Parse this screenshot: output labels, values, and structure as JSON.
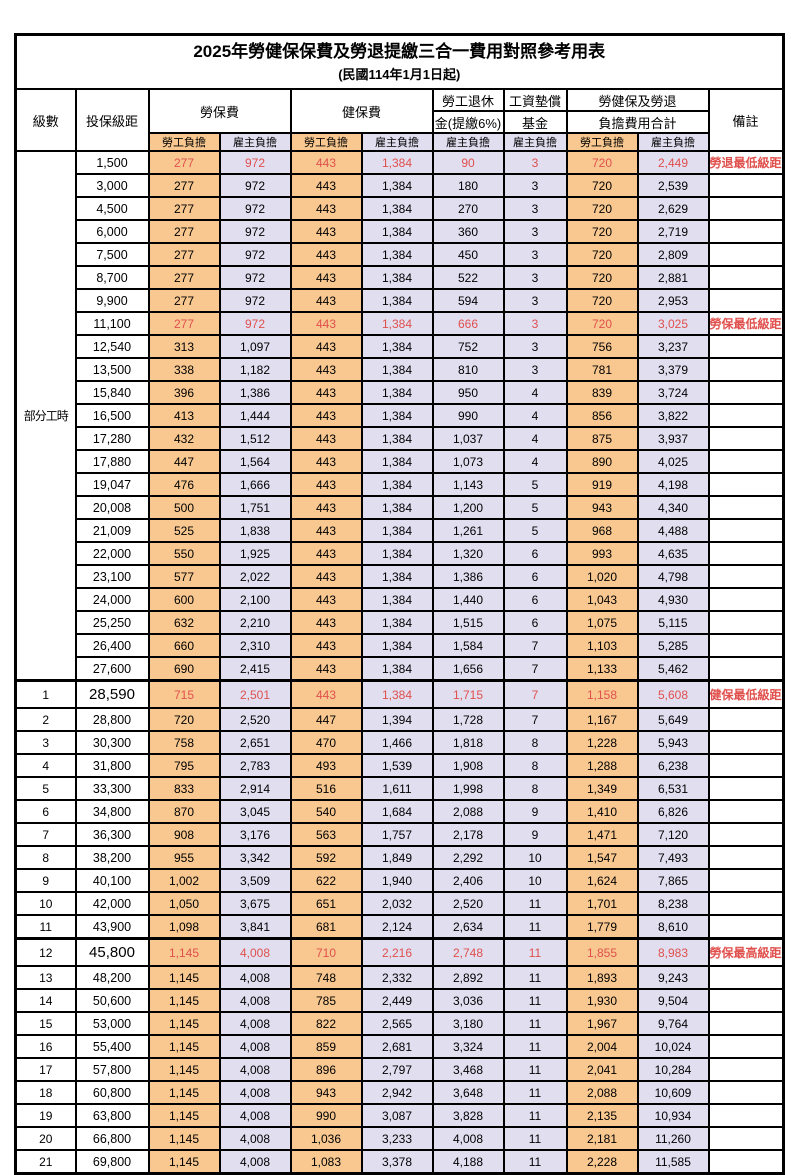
{
  "title": "2025年勞健保保費及勞退提繳三合一費用對照參考用表",
  "subtitle": "(民國114年1月1日起)",
  "colors": {
    "employee_bg": "#F8C890",
    "employer_bg": "#E1DEF0",
    "highlight_red": "#E0504D"
  },
  "header": {
    "level": "級數",
    "bracket": "投保級距",
    "labor_insurance": "勞保費",
    "health_insurance": "健保費",
    "pension_line1": "勞工退休",
    "pension_line2": "金(提繳6%)",
    "wage_fund_line1": "工資墊償",
    "wage_fund_line2": "基金",
    "total_line1": "勞健保及勞退",
    "total_line2": "負擔費用合計",
    "note": "備註",
    "employee_label": "勞工負擔",
    "employer_label": "雇主負擔"
  },
  "part_time_label": "部分工時",
  "part_time_rowspan": 23,
  "rows": [
    {
      "level": "",
      "bracket": "1,500",
      "values": [
        "277",
        "972",
        "443",
        "1,384",
        "90",
        "3",
        "720",
        "2,449"
      ],
      "note": "勞退最低級距",
      "red": true,
      "tall": false
    },
    {
      "level": "",
      "bracket": "3,000",
      "values": [
        "277",
        "972",
        "443",
        "1,384",
        "180",
        "3",
        "720",
        "2,539"
      ],
      "note": "",
      "red": false,
      "tall": false
    },
    {
      "level": "",
      "bracket": "4,500",
      "values": [
        "277",
        "972",
        "443",
        "1,384",
        "270",
        "3",
        "720",
        "2,629"
      ],
      "note": "",
      "red": false,
      "tall": false
    },
    {
      "level": "",
      "bracket": "6,000",
      "values": [
        "277",
        "972",
        "443",
        "1,384",
        "360",
        "3",
        "720",
        "2,719"
      ],
      "note": "",
      "red": false,
      "tall": false
    },
    {
      "level": "",
      "bracket": "7,500",
      "values": [
        "277",
        "972",
        "443",
        "1,384",
        "450",
        "3",
        "720",
        "2,809"
      ],
      "note": "",
      "red": false,
      "tall": false
    },
    {
      "level": "",
      "bracket": "8,700",
      "values": [
        "277",
        "972",
        "443",
        "1,384",
        "522",
        "3",
        "720",
        "2,881"
      ],
      "note": "",
      "red": false,
      "tall": false
    },
    {
      "level": "",
      "bracket": "9,900",
      "values": [
        "277",
        "972",
        "443",
        "1,384",
        "594",
        "3",
        "720",
        "2,953"
      ],
      "note": "",
      "red": false,
      "tall": false
    },
    {
      "level": "",
      "bracket": "11,100",
      "values": [
        "277",
        "972",
        "443",
        "1,384",
        "666",
        "3",
        "720",
        "3,025"
      ],
      "note": "勞保最低級距",
      "red": true,
      "tall": false
    },
    {
      "level": "",
      "bracket": "12,540",
      "values": [
        "313",
        "1,097",
        "443",
        "1,384",
        "752",
        "3",
        "756",
        "3,237"
      ],
      "note": "",
      "red": false,
      "tall": false
    },
    {
      "level": "",
      "bracket": "13,500",
      "values": [
        "338",
        "1,182",
        "443",
        "1,384",
        "810",
        "3",
        "781",
        "3,379"
      ],
      "note": "",
      "red": false,
      "tall": false
    },
    {
      "level": "",
      "bracket": "15,840",
      "values": [
        "396",
        "1,386",
        "443",
        "1,384",
        "950",
        "4",
        "839",
        "3,724"
      ],
      "note": "",
      "red": false,
      "tall": false
    },
    {
      "level": "",
      "bracket": "16,500",
      "values": [
        "413",
        "1,444",
        "443",
        "1,384",
        "990",
        "4",
        "856",
        "3,822"
      ],
      "note": "",
      "red": false,
      "tall": false
    },
    {
      "level": "",
      "bracket": "17,280",
      "values": [
        "432",
        "1,512",
        "443",
        "1,384",
        "1,037",
        "4",
        "875",
        "3,937"
      ],
      "note": "",
      "red": false,
      "tall": false
    },
    {
      "level": "",
      "bracket": "17,880",
      "values": [
        "447",
        "1,564",
        "443",
        "1,384",
        "1,073",
        "4",
        "890",
        "4,025"
      ],
      "note": "",
      "red": false,
      "tall": false
    },
    {
      "level": "",
      "bracket": "19,047",
      "values": [
        "476",
        "1,666",
        "443",
        "1,384",
        "1,143",
        "5",
        "919",
        "4,198"
      ],
      "note": "",
      "red": false,
      "tall": false
    },
    {
      "level": "",
      "bracket": "20,008",
      "values": [
        "500",
        "1,751",
        "443",
        "1,384",
        "1,200",
        "5",
        "943",
        "4,340"
      ],
      "note": "",
      "red": false,
      "tall": false
    },
    {
      "level": "",
      "bracket": "21,009",
      "values": [
        "525",
        "1,838",
        "443",
        "1,384",
        "1,261",
        "5",
        "968",
        "4,488"
      ],
      "note": "",
      "red": false,
      "tall": false
    },
    {
      "level": "",
      "bracket": "22,000",
      "values": [
        "550",
        "1,925",
        "443",
        "1,384",
        "1,320",
        "6",
        "993",
        "4,635"
      ],
      "note": "",
      "red": false,
      "tall": false
    },
    {
      "level": "",
      "bracket": "23,100",
      "values": [
        "577",
        "2,022",
        "443",
        "1,384",
        "1,386",
        "6",
        "1,020",
        "4,798"
      ],
      "note": "",
      "red": false,
      "tall": false
    },
    {
      "level": "",
      "bracket": "24,000",
      "values": [
        "600",
        "2,100",
        "443",
        "1,384",
        "1,440",
        "6",
        "1,043",
        "4,930"
      ],
      "note": "",
      "red": false,
      "tall": false
    },
    {
      "level": "",
      "bracket": "25,250",
      "values": [
        "632",
        "2,210",
        "443",
        "1,384",
        "1,515",
        "6",
        "1,075",
        "5,115"
      ],
      "note": "",
      "red": false,
      "tall": false
    },
    {
      "level": "",
      "bracket": "26,400",
      "values": [
        "660",
        "2,310",
        "443",
        "1,384",
        "1,584",
        "7",
        "1,103",
        "5,285"
      ],
      "note": "",
      "red": false,
      "tall": false
    },
    {
      "level": "",
      "bracket": "27,600",
      "values": [
        "690",
        "2,415",
        "443",
        "1,384",
        "1,656",
        "7",
        "1,133",
        "5,462"
      ],
      "note": "",
      "red": false,
      "tall": false
    },
    {
      "level": "1",
      "bracket": "28,590",
      "values": [
        "715",
        "2,501",
        "443",
        "1,384",
        "1,715",
        "7",
        "1,158",
        "5,608"
      ],
      "note": "健保最低級距",
      "red": true,
      "tall": true
    },
    {
      "level": "2",
      "bracket": "28,800",
      "values": [
        "720",
        "2,520",
        "447",
        "1,394",
        "1,728",
        "7",
        "1,167",
        "5,649"
      ],
      "note": "",
      "red": false,
      "tall": false
    },
    {
      "level": "3",
      "bracket": "30,300",
      "values": [
        "758",
        "2,651",
        "470",
        "1,466",
        "1,818",
        "8",
        "1,228",
        "5,943"
      ],
      "note": "",
      "red": false,
      "tall": false
    },
    {
      "level": "4",
      "bracket": "31,800",
      "values": [
        "795",
        "2,783",
        "493",
        "1,539",
        "1,908",
        "8",
        "1,288",
        "6,238"
      ],
      "note": "",
      "red": false,
      "tall": false
    },
    {
      "level": "5",
      "bracket": "33,300",
      "values": [
        "833",
        "2,914",
        "516",
        "1,611",
        "1,998",
        "8",
        "1,349",
        "6,531"
      ],
      "note": "",
      "red": false,
      "tall": false
    },
    {
      "level": "6",
      "bracket": "34,800",
      "values": [
        "870",
        "3,045",
        "540",
        "1,684",
        "2,088",
        "9",
        "1,410",
        "6,826"
      ],
      "note": "",
      "red": false,
      "tall": false
    },
    {
      "level": "7",
      "bracket": "36,300",
      "values": [
        "908",
        "3,176",
        "563",
        "1,757",
        "2,178",
        "9",
        "1,471",
        "7,120"
      ],
      "note": "",
      "red": false,
      "tall": false
    },
    {
      "level": "8",
      "bracket": "38,200",
      "values": [
        "955",
        "3,342",
        "592",
        "1,849",
        "2,292",
        "10",
        "1,547",
        "7,493"
      ],
      "note": "",
      "red": false,
      "tall": false
    },
    {
      "level": "9",
      "bracket": "40,100",
      "values": [
        "1,002",
        "3,509",
        "622",
        "1,940",
        "2,406",
        "10",
        "1,624",
        "7,865"
      ],
      "note": "",
      "red": false,
      "tall": false
    },
    {
      "level": "10",
      "bracket": "42,000",
      "values": [
        "1,050",
        "3,675",
        "651",
        "2,032",
        "2,520",
        "11",
        "1,701",
        "8,238"
      ],
      "note": "",
      "red": false,
      "tall": false
    },
    {
      "level": "11",
      "bracket": "43,900",
      "values": [
        "1,098",
        "3,841",
        "681",
        "2,124",
        "2,634",
        "11",
        "1,779",
        "8,610"
      ],
      "note": "",
      "red": false,
      "tall": false
    },
    {
      "level": "12",
      "bracket": "45,800",
      "values": [
        "1,145",
        "4,008",
        "710",
        "2,216",
        "2,748",
        "11",
        "1,855",
        "8,983"
      ],
      "note": "勞保最高級距",
      "red": true,
      "tall": true
    },
    {
      "level": "13",
      "bracket": "48,200",
      "values": [
        "1,145",
        "4,008",
        "748",
        "2,332",
        "2,892",
        "11",
        "1,893",
        "9,243"
      ],
      "note": "",
      "red": false,
      "tall": false
    },
    {
      "level": "14",
      "bracket": "50,600",
      "values": [
        "1,145",
        "4,008",
        "785",
        "2,449",
        "3,036",
        "11",
        "1,930",
        "9,504"
      ],
      "note": "",
      "red": false,
      "tall": false
    },
    {
      "level": "15",
      "bracket": "53,000",
      "values": [
        "1,145",
        "4,008",
        "822",
        "2,565",
        "3,180",
        "11",
        "1,967",
        "9,764"
      ],
      "note": "",
      "red": false,
      "tall": false
    },
    {
      "level": "16",
      "bracket": "55,400",
      "values": [
        "1,145",
        "4,008",
        "859",
        "2,681",
        "3,324",
        "11",
        "2,004",
        "10,024"
      ],
      "note": "",
      "red": false,
      "tall": false
    },
    {
      "level": "17",
      "bracket": "57,800",
      "values": [
        "1,145",
        "4,008",
        "896",
        "2,797",
        "3,468",
        "11",
        "2,041",
        "10,284"
      ],
      "note": "",
      "red": false,
      "tall": false
    },
    {
      "level": "18",
      "bracket": "60,800",
      "values": [
        "1,145",
        "4,008",
        "943",
        "2,942",
        "3,648",
        "11",
        "2,088",
        "10,609"
      ],
      "note": "",
      "red": false,
      "tall": false
    },
    {
      "level": "19",
      "bracket": "63,800",
      "values": [
        "1,145",
        "4,008",
        "990",
        "3,087",
        "3,828",
        "11",
        "2,135",
        "10,934"
      ],
      "note": "",
      "red": false,
      "tall": false
    },
    {
      "level": "20",
      "bracket": "66,800",
      "values": [
        "1,145",
        "4,008",
        "1,036",
        "3,233",
        "4,008",
        "11",
        "2,181",
        "11,260"
      ],
      "note": "",
      "red": false,
      "tall": false
    },
    {
      "level": "21",
      "bracket": "69,800",
      "values": [
        "1,145",
        "4,008",
        "1,083",
        "3,378",
        "4,188",
        "11",
        "2,228",
        "11,585"
      ],
      "note": "",
      "red": false,
      "tall": false
    }
  ],
  "value_col_fills": [
    "emp",
    "er",
    "emp",
    "er",
    "er",
    "er",
    "emp",
    "er"
  ]
}
